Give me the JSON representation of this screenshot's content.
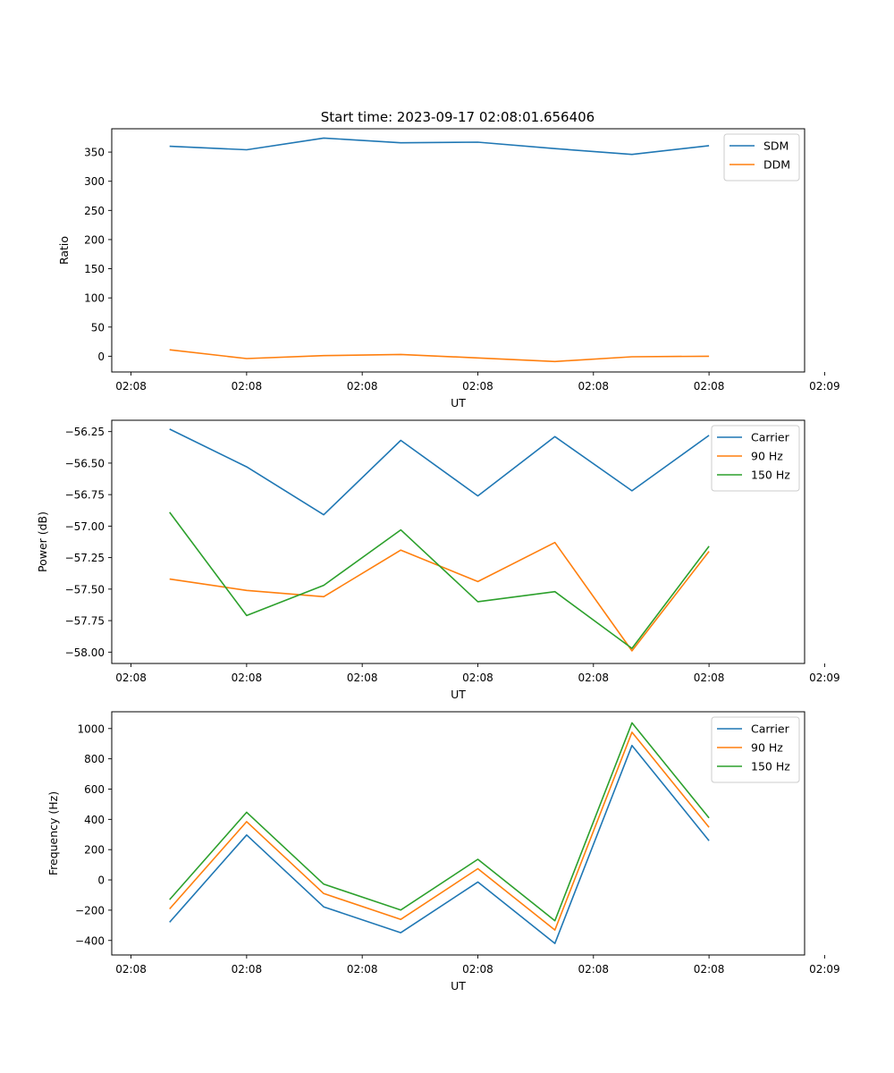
{
  "figure": {
    "title": "Start time: 2023-09-17 02:08:01.656406"
  },
  "colors": {
    "blue": "#1f77b4",
    "orange": "#ff7f0e",
    "green": "#2ca02c"
  },
  "chart_data": [
    {
      "type": "line",
      "title": "Start time: 2023-09-17 02:08:01.656406",
      "xlabel": "UT",
      "ylabel": "Ratio",
      "x": [
        1,
        2,
        3,
        4,
        5,
        6,
        7,
        8
      ],
      "xlim": [
        0.25,
        9.24
      ],
      "x_ticks": [
        0.5,
        2,
        3.5,
        5,
        6.5,
        8,
        9.5
      ],
      "x_tick_labels": [
        "02:08",
        "02:08",
        "02:08",
        "02:08",
        "02:08",
        "02:08",
        "02:09"
      ],
      "ylim": [
        -27,
        390
      ],
      "y_ticks": [
        0,
        50,
        100,
        150,
        200,
        250,
        300,
        350
      ],
      "y_tick_labels": [
        "0",
        "50",
        "100",
        "150",
        "200",
        "250",
        "300",
        "350"
      ],
      "legend_position": "top-right",
      "series": [
        {
          "name": "SDM",
          "color": "blue",
          "values": [
            360,
            354,
            374,
            366,
            367,
            356,
            346,
            361
          ]
        },
        {
          "name": "DDM",
          "color": "orange",
          "values": [
            11,
            -4,
            1,
            3,
            -3,
            -9,
            -1,
            0
          ]
        }
      ]
    },
    {
      "type": "line",
      "xlabel": "UT",
      "ylabel": "Power (dB)",
      "x": [
        1,
        2,
        3,
        4,
        5,
        6,
        7,
        8
      ],
      "xlim": [
        0.25,
        9.24
      ],
      "x_ticks": [
        0.5,
        2,
        3.5,
        5,
        6.5,
        8,
        9.5
      ],
      "x_tick_labels": [
        "02:08",
        "02:08",
        "02:08",
        "02:08",
        "02:08",
        "02:08",
        "02:09"
      ],
      "ylim": [
        -58.09,
        -56.16
      ],
      "y_ticks": [
        -58.0,
        -57.75,
        -57.5,
        -57.25,
        -57.0,
        -56.75,
        -56.5,
        -56.25
      ],
      "y_tick_labels": [
        "−58.00",
        "−57.75",
        "−57.50",
        "−57.25",
        "−57.00",
        "−56.75",
        "−56.50",
        "−56.25"
      ],
      "legend_position": "top-right",
      "series": [
        {
          "name": "Carrier",
          "color": "blue",
          "values": [
            -56.23,
            -56.53,
            -56.91,
            -56.32,
            -56.76,
            -56.29,
            -56.72,
            -56.28
          ]
        },
        {
          "name": "90 Hz",
          "color": "orange",
          "values": [
            -57.42,
            -57.51,
            -57.56,
            -57.19,
            -57.44,
            -57.13,
            -57.99,
            -57.2
          ]
        },
        {
          "name": "150 Hz",
          "color": "green",
          "values": [
            -56.89,
            -57.71,
            -57.47,
            -57.03,
            -57.6,
            -57.52,
            -57.97,
            -57.16
          ]
        }
      ]
    },
    {
      "type": "line",
      "xlabel": "UT",
      "ylabel": "Frequency (Hz)",
      "x": [
        1,
        2,
        3,
        4,
        5,
        6,
        7,
        8
      ],
      "xlim": [
        0.25,
        9.24
      ],
      "x_ticks": [
        0.5,
        2,
        3.5,
        5,
        6.5,
        8,
        9.5
      ],
      "x_tick_labels": [
        "02:08",
        "02:08",
        "02:08",
        "02:08",
        "02:08",
        "02:08",
        "02:09"
      ],
      "ylim": [
        -496,
        1111
      ],
      "y_ticks": [
        -400,
        -200,
        0,
        200,
        400,
        600,
        800,
        1000
      ],
      "y_tick_labels": [
        "−400",
        "−200",
        "0",
        "200",
        "400",
        "600",
        "800",
        "1000"
      ],
      "legend_position": "top-right",
      "series": [
        {
          "name": "Carrier",
          "color": "blue",
          "values": [
            -280,
            297,
            -178,
            -349,
            -14,
            -420,
            888,
            259
          ]
        },
        {
          "name": "90 Hz",
          "color": "orange",
          "values": [
            -192,
            385,
            -90,
            -261,
            74,
            -331,
            976,
            347
          ]
        },
        {
          "name": "150 Hz",
          "color": "green",
          "values": [
            -130,
            447,
            -28,
            -199,
            136,
            -270,
            1038,
            409
          ]
        }
      ]
    }
  ]
}
